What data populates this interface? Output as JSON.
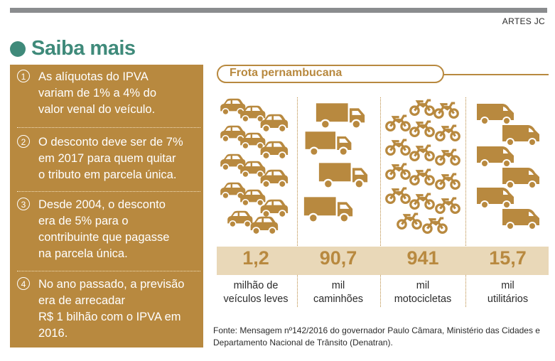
{
  "credit": "ARTES JC",
  "title": "Saiba mais",
  "items": [
    {
      "num": "1",
      "text": "As alíquotas do IPVA\nvariam de 1% a 4% do\nvalor venal do veículo."
    },
    {
      "num": "2",
      "text": "O desconto deve ser de 7%\nem 2017 para quem quitar\no tributo em parcela única."
    },
    {
      "num": "3",
      "text": "Desde 2004, o desconto\nera de 5% para o\ncontribuinte que pagasse\nna parcela única."
    },
    {
      "num": "4",
      "text": "No ano passado, a previsão\nera de arrecadar\nR$ 1 bilhão com o IPVA em\n2016."
    }
  ],
  "fleet": {
    "header": "Frota pernambucana",
    "columns": [
      {
        "icon": "car-icon",
        "value": "1,2",
        "unit": "milhão de",
        "label": "veículos leves"
      },
      {
        "icon": "truck-icon",
        "value": "90,7",
        "unit": "mil",
        "label": "caminhões"
      },
      {
        "icon": "motorcycle-icon",
        "value": "941",
        "unit": "mil",
        "label": "motocicletas"
      },
      {
        "icon": "van-icon",
        "value": "15,7",
        "unit": "mil",
        "label": "utilitários"
      }
    ]
  },
  "source": "Fonte: Mensagem nº142/2016 do governador Paulo Câmara, Ministério das Cidades e Departamento Nacional de Trânsito (Denatran).",
  "colors": {
    "accent": "#b8893f",
    "title": "#3f8a7a",
    "band": "#e9d8b8"
  }
}
